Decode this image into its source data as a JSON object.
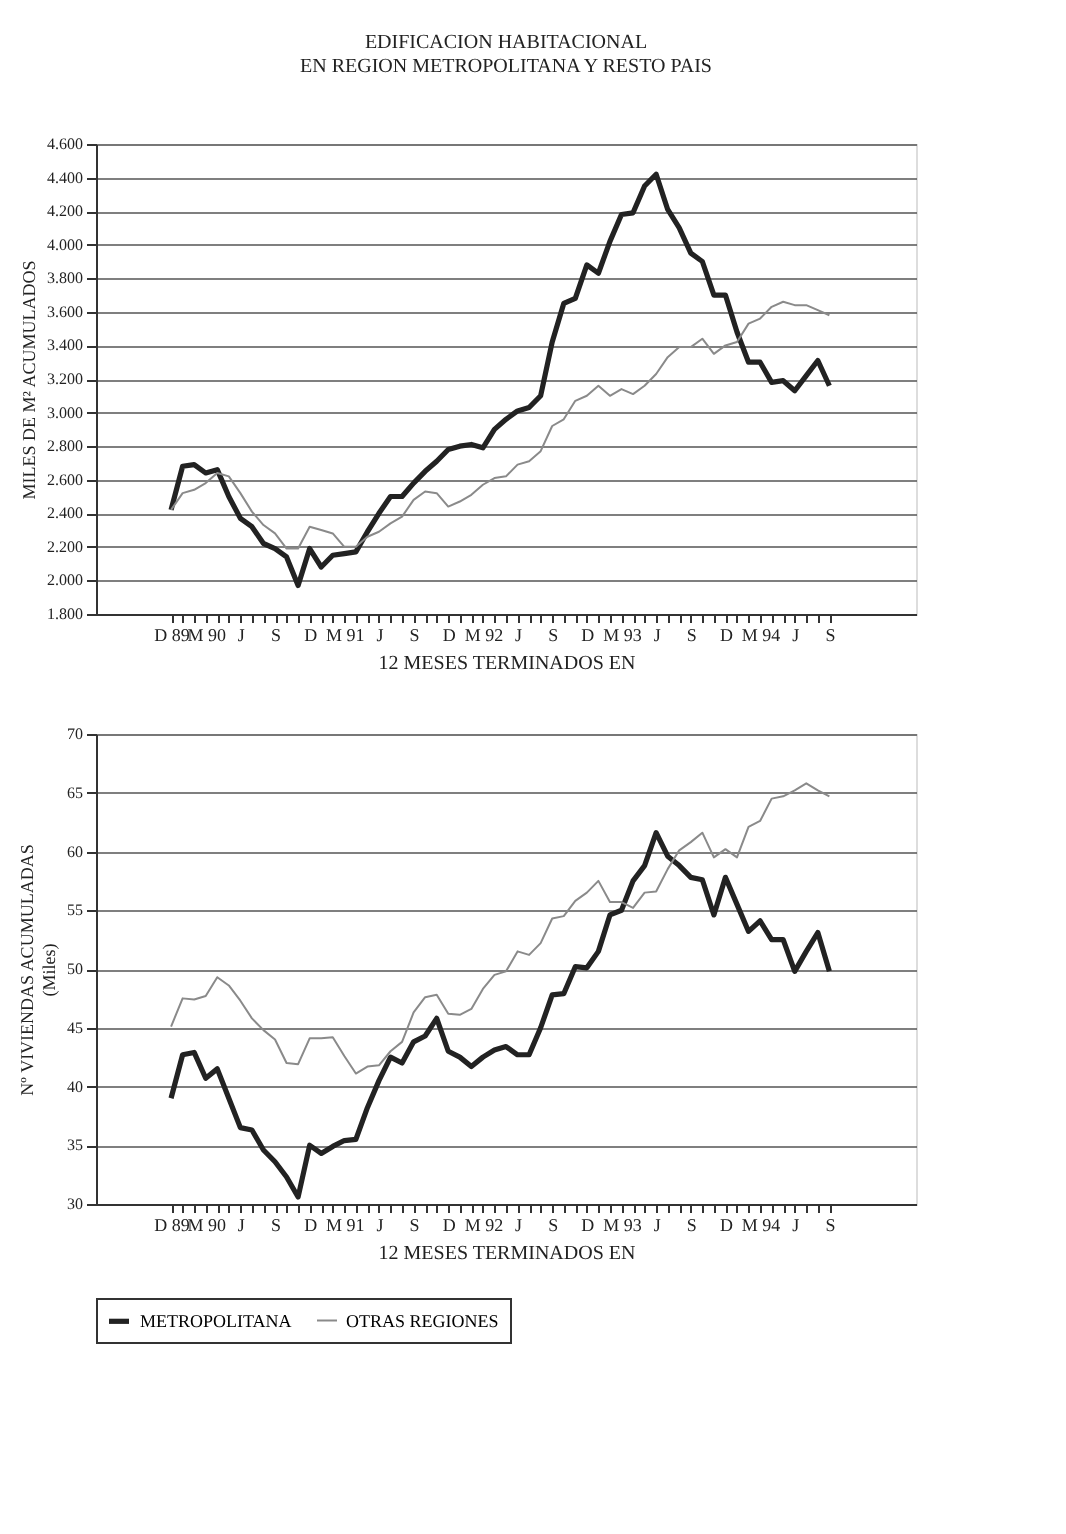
{
  "chart_data": [
    {
      "type": "line",
      "title": "EDIFICACION HABITACIONAL\nEN REGION METROPOLITANA Y RESTO PAIS",
      "xlabel": "12 MESES TERMINADOS EN",
      "ylabel": "MILES DE M² ACUMULADOS",
      "categories": [
        "D 89",
        null,
        null,
        "M 90",
        null,
        null,
        "J",
        null,
        null,
        "S",
        null,
        null,
        "D",
        null,
        null,
        "M 91",
        null,
        null,
        "J",
        null,
        null,
        "S",
        null,
        null,
        "D",
        null,
        null,
        "M 92",
        null,
        null,
        "J",
        null,
        null,
        "S",
        null,
        null,
        "D",
        null,
        null,
        "M 93",
        null,
        null,
        "J",
        null,
        null,
        "S",
        null,
        null,
        "D",
        null,
        null,
        "M 94",
        null,
        null,
        "J",
        null,
        null,
        "S"
      ],
      "series": [
        {
          "color": "#222222",
          "values": [
            2420,
            2680,
            2690,
            2640,
            2660,
            2500,
            2370,
            2320,
            2220,
            2190,
            2140,
            1970,
            2190,
            2080,
            2150,
            2160,
            2170,
            2290,
            2400,
            2500,
            2500,
            2580,
            2650,
            2710,
            2780,
            2800,
            2810,
            2790,
            2900,
            2960,
            3010,
            3030,
            3100,
            3420,
            3650,
            3680,
            3880,
            3830,
            4020,
            4180,
            4190,
            4350,
            4420,
            4210,
            4100,
            3950,
            3900,
            3700,
            3700,
            3480,
            3300,
            3300,
            3180,
            3190,
            3130,
            3220,
            3310,
            3160
          ]
        },
        {
          "color": "#8a8a8a",
          "values": [
            2420,
            2520,
            2540,
            2580,
            2640,
            2620,
            2520,
            2410,
            2330,
            2280,
            2190,
            2190,
            2320,
            2300,
            2280,
            2200,
            2200,
            2260,
            2290,
            2340,
            2380,
            2480,
            2530,
            2520,
            2440,
            2470,
            2510,
            2570,
            2610,
            2620,
            2690,
            2710,
            2770,
            2920,
            2960,
            3070,
            3100,
            3160,
            3100,
            3140,
            3110,
            3160,
            3230,
            3330,
            3390,
            3390,
            3440,
            3350,
            3400,
            3420,
            3530,
            3560,
            3630,
            3660,
            3640,
            3640,
            3610,
            3580
          ]
        }
      ],
      "ylim": [
        1800,
        4600
      ],
      "yticks": [
        {
          "value": 1800,
          "label": "1.800"
        },
        {
          "value": 2000,
          "label": "2.000"
        },
        {
          "value": 2200,
          "label": "2.200"
        },
        {
          "value": 2400,
          "label": "2.400"
        },
        {
          "value": 2600,
          "label": "2.600"
        },
        {
          "value": 2800,
          "label": "2.800"
        },
        {
          "value": 3000,
          "label": "3.000"
        },
        {
          "value": 3200,
          "label": "3.200"
        },
        {
          "value": 3400,
          "label": "3.400"
        },
        {
          "value": 3600,
          "label": "3.600"
        },
        {
          "value": 3800,
          "label": "3.800"
        },
        {
          "value": 4000,
          "label": "4.000"
        },
        {
          "value": 4200,
          "label": "4.200"
        },
        {
          "value": 4400,
          "label": "4.400"
        },
        {
          "value": 4600,
          "label": "4.600"
        }
      ],
      "grid": "y",
      "legend": false,
      "marker": "none",
      "line_style": "solid"
    },
    {
      "type": "line",
      "xlabel": "12 MESES TERMINADOS EN",
      "ylabel": "Nº VIVIENDAS ACUMULADAS\n(Miles)",
      "categories": [
        "D 89",
        null,
        null,
        "M 90",
        null,
        null,
        "J",
        null,
        null,
        "S",
        null,
        null,
        "D",
        null,
        null,
        "M 91",
        null,
        null,
        "J",
        null,
        null,
        "S",
        null,
        null,
        "D",
        null,
        null,
        "M 92",
        null,
        null,
        "J",
        null,
        null,
        "S",
        null,
        null,
        "D",
        null,
        null,
        "M 93",
        null,
        null,
        "J",
        null,
        null,
        "S",
        null,
        null,
        "D",
        null,
        null,
        "M 94",
        null,
        null,
        "J",
        null,
        null,
        "S"
      ],
      "series": [
        {
          "name": "METROPOLITANA",
          "color": "#222222",
          "values": [
            39,
            42.7,
            42.9,
            40.7,
            41.5,
            39,
            36.5,
            36.3,
            34.6,
            33.6,
            32.3,
            30.6,
            35,
            34.3,
            34.9,
            35.4,
            35.5,
            38.2,
            40.5,
            42.5,
            42,
            43.8,
            44.3,
            45.8,
            43,
            42.5,
            41.7,
            42.5,
            43.1,
            43.4,
            42.7,
            42.7,
            45,
            47.8,
            47.9,
            50.2,
            50.1,
            51.5,
            54.6,
            55,
            57.5,
            58.8,
            61.6,
            59.6,
            58.8,
            57.8,
            57.6,
            54.6,
            57.8,
            55.5,
            53.2,
            54.1,
            52.5,
            52.5,
            49.8,
            51.5,
            53.1,
            49.8
          ]
        },
        {
          "name": "OTRAS REGIONES",
          "color": "#8a8a8a",
          "values": [
            45.1,
            47.5,
            47.4,
            47.7,
            49.3,
            48.6,
            47.3,
            45.8,
            44.8,
            44,
            42,
            41.9,
            44.1,
            44.1,
            44.2,
            42.6,
            41.1,
            41.7,
            41.8,
            43,
            43.8,
            46.3,
            47.6,
            47.8,
            46.2,
            46.1,
            46.6,
            48.3,
            49.5,
            49.8,
            51.5,
            51.2,
            52.2,
            54.3,
            54.5,
            55.8,
            56.5,
            57.5,
            55.7,
            55.7,
            55.2,
            56.5,
            56.6,
            58.5,
            60.1,
            60.8,
            61.6,
            59.5,
            60.2,
            59.5,
            62.1,
            62.6,
            64.5,
            64.7,
            65.2,
            65.8,
            65.2,
            64.7
          ]
        }
      ],
      "ylim": [
        30,
        70
      ],
      "yticks": [
        30,
        35,
        40,
        45,
        50,
        55,
        60,
        65,
        70
      ],
      "grid": "y",
      "legend": "bottom",
      "marker": "none",
      "line_style": "solid"
    }
  ]
}
